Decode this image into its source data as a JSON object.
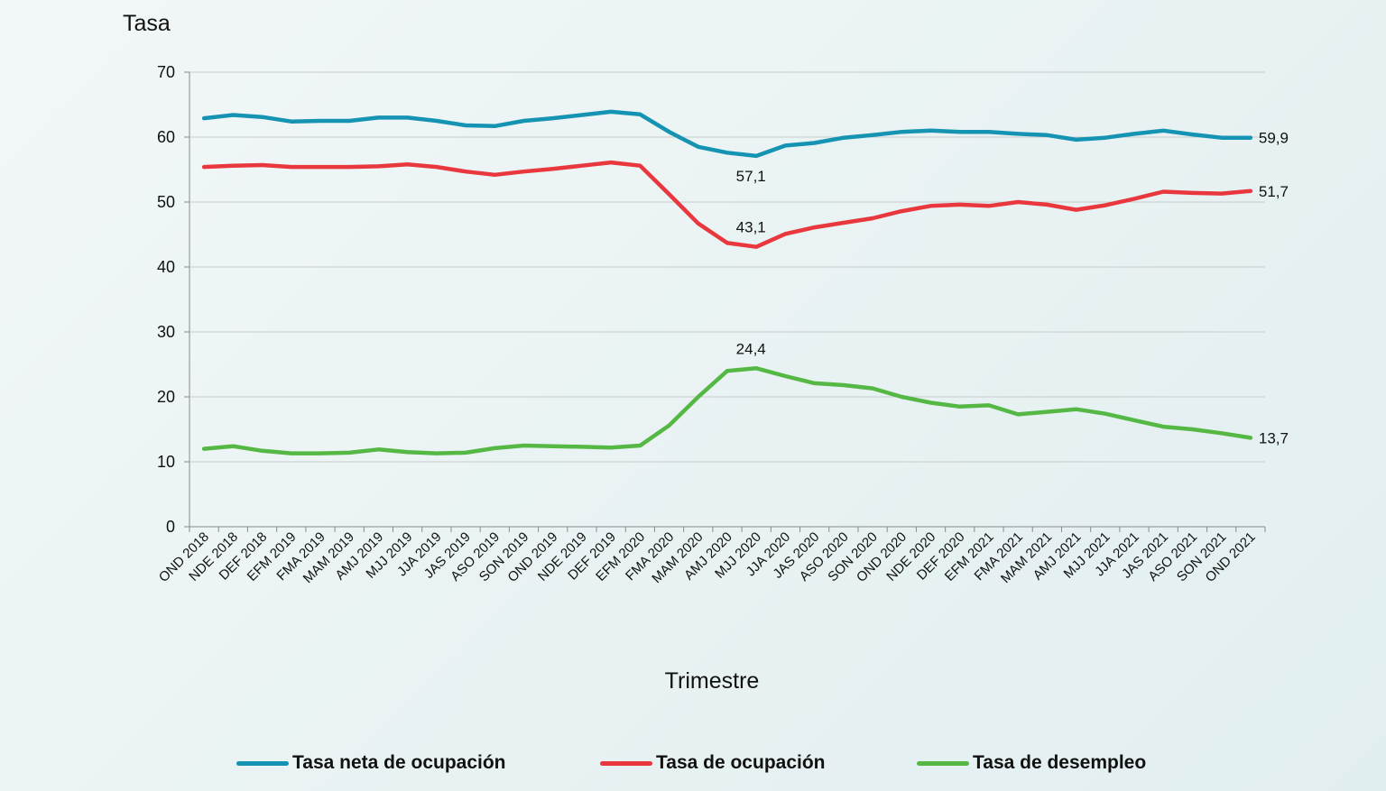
{
  "chart_data": {
    "type": "line",
    "ylabel": "Tasa",
    "xlabel": "Trimestre",
    "ylim": [
      0,
      70
    ],
    "yticks": [
      0,
      10,
      20,
      30,
      40,
      50,
      60,
      70
    ],
    "grid": true,
    "legend_position": "bottom",
    "categories": [
      "OND 2018",
      "NDE 2018",
      "DEF 2018",
      "EFM 2019",
      "FMA 2019",
      "MAM 2019",
      "AMJ 2019",
      "MJJ 2019",
      "JJA 2019",
      "JAS 2019",
      "ASO 2019",
      "SON 2019",
      "OND 2019",
      "NDE 2019",
      "DEF 2019",
      "EFM 2020",
      "FMA 2020",
      "MAM 2020",
      "AMJ 2020",
      "MJJ 2020",
      "JJA 2020",
      "JAS 2020",
      "ASO 2020",
      "SON 2020",
      "OND 2020",
      "NDE 2020",
      "DEF 2020",
      "EFM 2021",
      "FMA 2021",
      "MAM 2021",
      "AMJ 2021",
      "MJJ 2021",
      "JJA 2021",
      "JAS 2021",
      "ASO 2021",
      "SON 2021",
      "OND 2021"
    ],
    "series": [
      {
        "name": "Tasa neta de ocupación",
        "color": "#1593b3",
        "values": [
          62.9,
          63.4,
          63.1,
          62.4,
          62.5,
          62.5,
          63.0,
          63.0,
          62.5,
          61.8,
          61.7,
          62.5,
          62.9,
          63.4,
          63.9,
          63.5,
          60.8,
          58.5,
          57.6,
          57.1,
          58.7,
          59.1,
          59.9,
          60.3,
          60.8,
          61.0,
          60.8,
          60.8,
          60.5,
          60.3,
          59.6,
          59.9,
          60.5,
          61.0,
          60.4,
          59.9,
          59.9
        ],
        "annotations": [
          {
            "index": 19,
            "text": "57,1"
          },
          {
            "index": 36,
            "text": "59,9"
          }
        ]
      },
      {
        "name": "Tasa de ocupación",
        "color": "#e8383d",
        "values": [
          55.4,
          55.6,
          55.7,
          55.4,
          55.4,
          55.4,
          55.5,
          55.8,
          55.4,
          54.7,
          54.2,
          54.7,
          55.1,
          55.6,
          56.1,
          55.6,
          51.2,
          46.7,
          43.7,
          43.1,
          45.1,
          46.1,
          46.8,
          47.5,
          48.6,
          49.4,
          49.6,
          49.4,
          50.0,
          49.6,
          48.8,
          49.5,
          50.5,
          51.6,
          51.4,
          51.3,
          51.7
        ],
        "annotations": [
          {
            "index": 19,
            "text": "43,1"
          },
          {
            "index": 36,
            "text": "51,7"
          }
        ]
      },
      {
        "name": "Tasa de desempleo",
        "color": "#56b844",
        "values": [
          12.0,
          12.4,
          11.7,
          11.3,
          11.3,
          11.4,
          11.9,
          11.5,
          11.3,
          11.4,
          12.1,
          12.5,
          12.4,
          12.3,
          12.2,
          12.5,
          15.6,
          20.0,
          24.0,
          24.4,
          23.2,
          22.1,
          21.8,
          21.3,
          20.0,
          19.1,
          18.5,
          18.7,
          17.3,
          17.7,
          18.1,
          17.4,
          16.4,
          15.4,
          15.0,
          14.4,
          13.7
        ],
        "annotations": [
          {
            "index": 19,
            "text": "24,4"
          },
          {
            "index": 36,
            "text": "13,7"
          }
        ]
      }
    ]
  }
}
